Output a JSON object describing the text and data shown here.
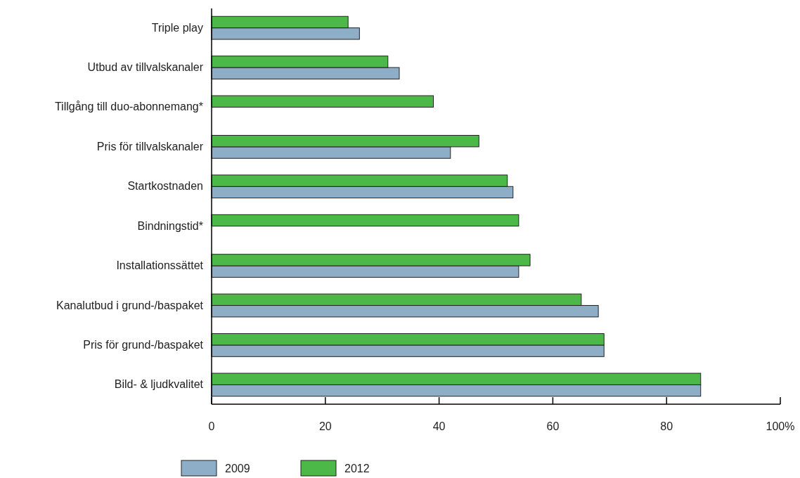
{
  "chart_data": {
    "type": "bar",
    "orientation": "horizontal",
    "categories": [
      "Triple play",
      "Utbud av tillvalskanaler",
      "Tillgång till duo-abonnemang*",
      "Pris för tillvalskanaler",
      "Startkostnaden",
      "Bindningstid*",
      "Installationssättet",
      "Kanalutbud i grund-/baspaket",
      "Pris för grund-/baspaket",
      "Bild- & ljudkvalitet"
    ],
    "series": [
      {
        "name": "2009",
        "color": "#8eaec8",
        "values": [
          26,
          33,
          null,
          42,
          53,
          null,
          54,
          68,
          69,
          86
        ]
      },
      {
        "name": "2012",
        "color": "#4cb848",
        "values": [
          24,
          31,
          39,
          47,
          52,
          54,
          56,
          65,
          69,
          86
        ]
      }
    ],
    "xlim": [
      0,
      100
    ],
    "xticks": [
      0,
      20,
      40,
      60,
      80,
      {
        "value": 100,
        "label": "100%"
      }
    ],
    "grid": false,
    "legend": "bottom left"
  }
}
